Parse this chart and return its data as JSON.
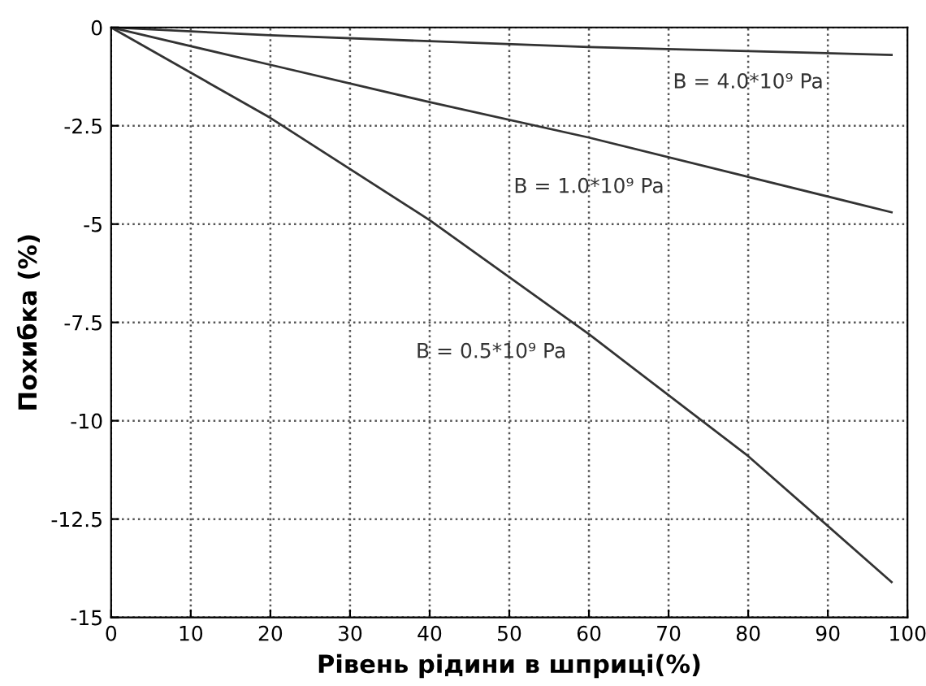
{
  "chart_data": {
    "type": "line",
    "xlabel": "Рівень рідини в шприці(%)",
    "ylabel": "Похибка (%)",
    "xlim": [
      0,
      100
    ],
    "ylim": [
      -15,
      0
    ],
    "xticks": [
      0,
      10,
      20,
      30,
      40,
      50,
      60,
      70,
      80,
      90,
      100
    ],
    "yticks": [
      -15,
      -12.5,
      -10,
      -7.5,
      -5,
      -2.5,
      0
    ],
    "grid": true,
    "line_style": "solid",
    "marker": "none",
    "series": [
      {
        "name": "B = 4.0*10⁹ Pa",
        "x": [
          0,
          20,
          40,
          60,
          80,
          98
        ],
        "values": [
          0,
          -0.2,
          -0.35,
          -0.5,
          -0.6,
          -0.7
        ],
        "color": "#333333"
      },
      {
        "name": "B = 1.0*10⁹ Pa",
        "x": [
          0,
          20,
          40,
          60,
          80,
          98
        ],
        "values": [
          0,
          -0.95,
          -1.9,
          -2.8,
          -3.8,
          -4.7
        ],
        "color": "#333333"
      },
      {
        "name": "B = 0.5*10⁹ Pa",
        "x": [
          0,
          20,
          40,
          60,
          80,
          98
        ],
        "values": [
          0,
          -2.3,
          -4.9,
          -7.8,
          -10.9,
          -14.1
        ],
        "color": "#333333"
      }
    ]
  }
}
